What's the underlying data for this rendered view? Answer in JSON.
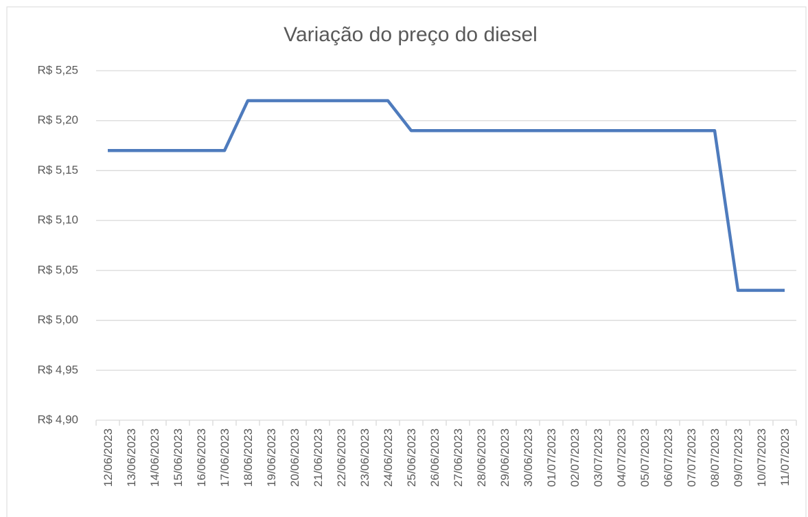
{
  "chart_data": {
    "type": "line",
    "title": "Variação do preço do diesel",
    "categories": [
      "12/06/2023",
      "13/06/2023",
      "14/06/2023",
      "15/06/2023",
      "16/06/2023",
      "17/06/2023",
      "18/06/2023",
      "19/06/2023",
      "20/06/2023",
      "21/06/2023",
      "22/06/2023",
      "23/06/2023",
      "24/06/2023",
      "25/06/2023",
      "26/06/2023",
      "27/06/2023",
      "28/06/2023",
      "29/06/2023",
      "30/06/2023",
      "01/07/2023",
      "02/07/2023",
      "03/07/2023",
      "04/07/2023",
      "05/07/2023",
      "06/07/2023",
      "07/07/2023",
      "08/07/2023",
      "09/07/2023",
      "10/07/2023",
      "11/07/2023"
    ],
    "values": [
      5.17,
      5.17,
      5.17,
      5.17,
      5.17,
      5.17,
      5.22,
      5.22,
      5.22,
      5.22,
      5.22,
      5.22,
      5.22,
      5.19,
      5.19,
      5.19,
      5.19,
      5.19,
      5.19,
      5.19,
      5.19,
      5.19,
      5.19,
      5.19,
      5.19,
      5.19,
      5.19,
      5.03,
      5.03,
      5.03
    ],
    "color": "#4e7bbd",
    "ylim": [
      4.9,
      5.25
    ],
    "yticks": [
      {
        "value": 4.9,
        "label": "R$ 4,90"
      },
      {
        "value": 4.95,
        "label": "R$ 4,95"
      },
      {
        "value": 5.0,
        "label": "R$ 5,00"
      },
      {
        "value": 5.05,
        "label": "R$ 5,05"
      },
      {
        "value": 5.1,
        "label": "R$ 5,10"
      },
      {
        "value": 5.15,
        "label": "R$ 5,15"
      },
      {
        "value": 5.2,
        "label": "R$ 5,20"
      },
      {
        "value": 5.25,
        "label": "R$ 5,25"
      }
    ],
    "grid": true
  }
}
